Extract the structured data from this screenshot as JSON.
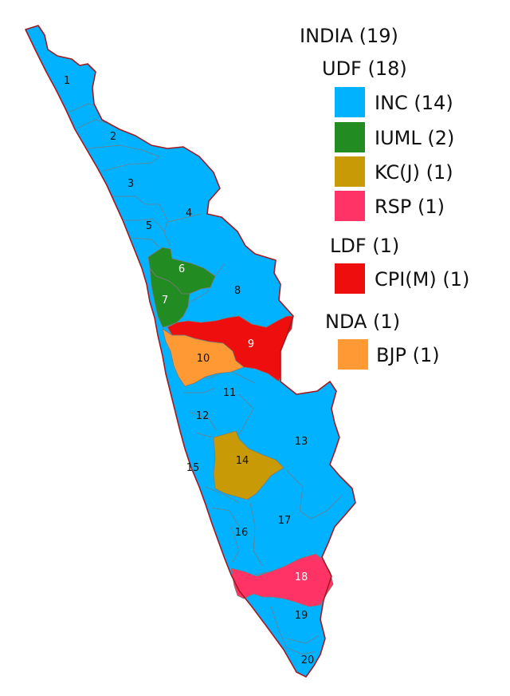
{
  "legend": {
    "india": "INDIA (19)",
    "udf": "UDF (18)",
    "ldf": "LDF (1)",
    "nda": "NDA (1)",
    "items": [
      {
        "label": "INC (14)",
        "color": "#00B2FF"
      },
      {
        "label": "IUML (2)",
        "color": "#228B22"
      },
      {
        "label": "KC(J) (1)",
        "color": "#C89B06"
      },
      {
        "label": "RSP (1)",
        "color": "#FF3366"
      },
      {
        "label": "CPI(M) (1)",
        "color": "#EE0E0E"
      },
      {
        "label": "BJP (1)",
        "color": "#FF9933"
      }
    ]
  },
  "constituencies": [
    {
      "number": "1",
      "party": "INC"
    },
    {
      "number": "2",
      "party": "INC"
    },
    {
      "number": "3",
      "party": "INC"
    },
    {
      "number": "4",
      "party": "INC"
    },
    {
      "number": "5",
      "party": "INC"
    },
    {
      "number": "6",
      "party": "IUML"
    },
    {
      "number": "7",
      "party": "IUML"
    },
    {
      "number": "8",
      "party": "INC"
    },
    {
      "number": "9",
      "party": "CPI(M)"
    },
    {
      "number": "10",
      "party": "BJP"
    },
    {
      "number": "11",
      "party": "INC"
    },
    {
      "number": "12",
      "party": "INC"
    },
    {
      "number": "13",
      "party": "INC"
    },
    {
      "number": "14",
      "party": "KC(J)"
    },
    {
      "number": "15",
      "party": "INC"
    },
    {
      "number": "16",
      "party": "INC"
    },
    {
      "number": "17",
      "party": "INC"
    },
    {
      "number": "18",
      "party": "RSP"
    },
    {
      "number": "19",
      "party": "INC"
    },
    {
      "number": "20",
      "party": "INC"
    }
  ]
}
